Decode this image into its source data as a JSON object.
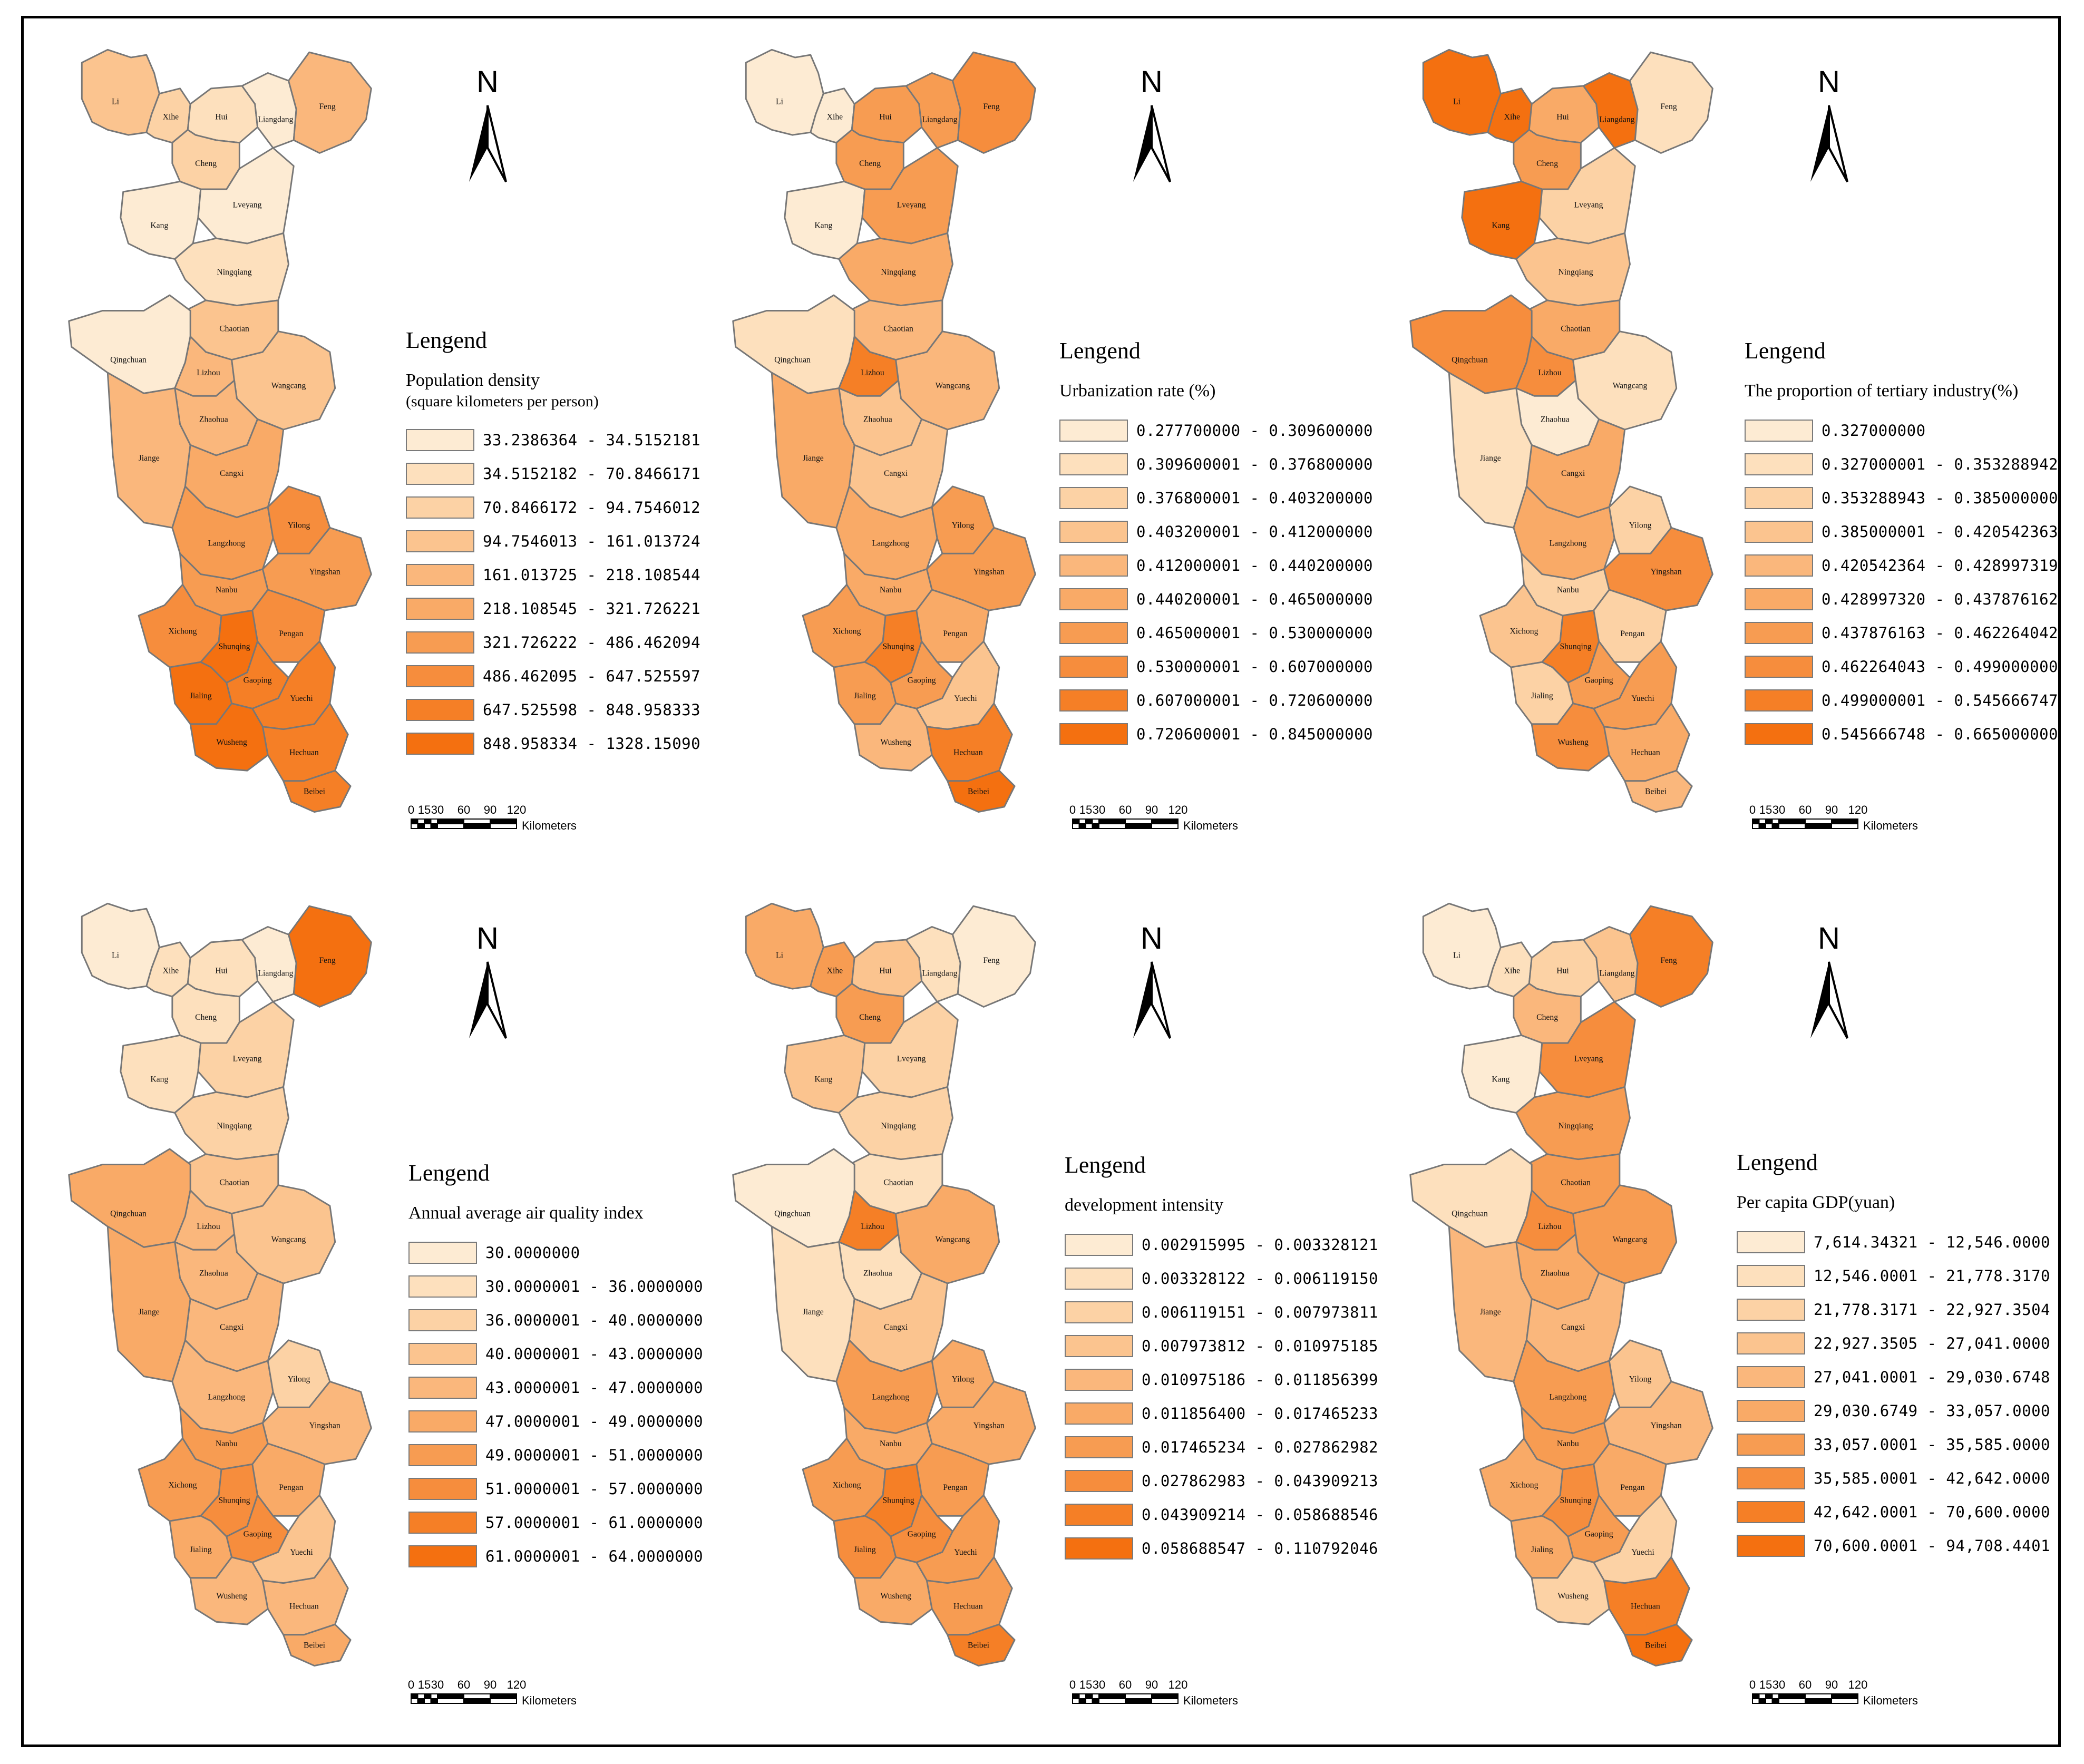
{
  "colors": {
    "ramp": [
      "#fdebd3",
      "#fde0bd",
      "#fcd2a5",
      "#fbc48f",
      "#fab77c",
      "#f9aa67",
      "#f79c52",
      "#f68d3d",
      "#f57f26",
      "#f47010"
    ],
    "outline": "#777777",
    "frame": "#000000"
  },
  "map": {
    "districts": [
      "Li",
      "Xihe",
      "Hui",
      "Liangdang",
      "Feng",
      "Cheng",
      "Kang",
      "Lveyang",
      "Ningqiang",
      "Chaotian",
      "Qingchuan",
      "Lizhou",
      "Wangcang",
      "Zhaohua",
      "Jiange",
      "Cangxi",
      "Langzhong",
      "Yilong",
      "Nanbu",
      "Yingshan",
      "Xichong",
      "Shunqing",
      "Pengan",
      "Gaoping",
      "Jialing",
      "Yuechi",
      "Wusheng",
      "Hechuan",
      "Beibei"
    ]
  },
  "north_label": "N",
  "scale_bar": {
    "ticks": [
      "0",
      "15",
      "30",
      "60",
      "90",
      "120"
    ],
    "unit": "Kilometers"
  },
  "panels": [
    {
      "heading": "Lengend",
      "title": "Population density",
      "subtitle": "(square kilometers per person)",
      "classes": [
        "33.2386364 - 34.5152181",
        "34.5152182 - 70.8466171",
        "70.8466172 - 94.7546012",
        "94.7546013 - 161.013724",
        "161.013725 - 218.108544",
        "218.108545 - 321.726221",
        "321.726222 - 486.462094",
        "486.462095 - 647.525597",
        "647.525598 - 848.958333",
        "848.958334 - 1328.15090"
      ],
      "levels": [
        3,
        2,
        1,
        0,
        4,
        2,
        0,
        0,
        1,
        3,
        0,
        4,
        3,
        4,
        4,
        5,
        6,
        7,
        6,
        6,
        7,
        9,
        7,
        8,
        9,
        8,
        9,
        8,
        8
      ]
    },
    {
      "heading": "Lengend",
      "title": "Urbanization rate (%)",
      "subtitle": "",
      "classes": [
        "0.277700000 - 0.309600000",
        "0.309600001 - 0.376800000",
        "0.376800001 - 0.403200000",
        "0.403200001 - 0.412000000",
        "0.412000001 - 0.440200000",
        "0.440200001 - 0.465000000",
        "0.465000001 - 0.530000000",
        "0.530000001 - 0.607000000",
        "0.607000001 - 0.720600000",
        "0.720600001 - 0.845000000"
      ],
      "levels": [
        0,
        0,
        6,
        6,
        7,
        6,
        0,
        6,
        5,
        4,
        1,
        8,
        4,
        3,
        5,
        3,
        5,
        6,
        5,
        6,
        6,
        8,
        5,
        6,
        6,
        3,
        4,
        8,
        9
      ]
    },
    {
      "heading": "Lengend",
      "title": "The proportion of tertiary industry(%)",
      "subtitle": "",
      "classes": [
        "0.327000000",
        "0.327000001 - 0.353288942",
        "0.353288943 - 0.385000000",
        "0.385000001 - 0.420542363",
        "0.420542364 - 0.428997319",
        "0.428997320 - 0.437876162",
        "0.437876163 - 0.462264042",
        "0.462264043 - 0.499000000",
        "0.499000001 - 0.545666747",
        "0.545666748 - 0.665000000"
      ],
      "levels": [
        9,
        9,
        5,
        9,
        1,
        6,
        9,
        2,
        3,
        5,
        7,
        7,
        1,
        0,
        1,
        5,
        5,
        2,
        2,
        7,
        3,
        8,
        2,
        6,
        2,
        6,
        7,
        5,
        4
      ]
    },
    {
      "heading": "Lengend",
      "title": "Annual average air quality index",
      "subtitle": "",
      "classes": [
        "30.0000000",
        "30.0000001 - 36.0000000",
        "36.0000001 - 40.0000000",
        "40.0000001 - 43.0000000",
        "43.0000001 - 47.0000000",
        "47.0000001 - 49.0000000",
        "49.0000001 - 51.0000000",
        "51.0000001 - 57.0000000",
        "57.0000001 - 61.0000000",
        "61.0000001 - 64.0000000"
      ],
      "levels": [
        0,
        1,
        1,
        0,
        9,
        1,
        1,
        2,
        2,
        3,
        5,
        4,
        3,
        4,
        5,
        4,
        4,
        2,
        6,
        4,
        6,
        7,
        5,
        7,
        5,
        3,
        4,
        4,
        5
      ]
    },
    {
      "heading": "Lengend",
      "title": "development intensity",
      "subtitle": "",
      "classes": [
        "0.002915995 - 0.003328121",
        "0.003328122 - 0.006119150",
        "0.006119151 - 0.007973811",
        "0.007973812 - 0.010975185",
        "0.010975186 - 0.011856399",
        "0.011856400 - 0.017465233",
        "0.017465234 - 0.027862982",
        "0.027862983 - 0.043909213",
        "0.043909214 - 0.058688546",
        "0.058688547 - 0.110792046"
      ],
      "levels": [
        5,
        6,
        3,
        1,
        0,
        6,
        3,
        2,
        2,
        1,
        0,
        8,
        5,
        1,
        1,
        3,
        6,
        5,
        5,
        5,
        6,
        8,
        6,
        7,
        7,
        6,
        5,
        6,
        8
      ]
    },
    {
      "heading": "Lengend",
      "title": "Per capita GDP(yuan)",
      "subtitle": "",
      "classes": [
        "7,614.34321 - 12,546.0000",
        "12,546.0001 - 21,778.3170",
        "21,778.3171 - 22,927.3504",
        "22,927.3505 - 27,041.0000",
        "27,041.0001 - 29,030.6748",
        "29,030.6749 - 33,057.0000",
        "33,057.0001 - 35,585.0000",
        "35,585.0001 - 42,642.0000",
        "42,642.0001 - 70,600.0000",
        "70,600.0001 - 94,708.4401"
      ],
      "levels": [
        0,
        1,
        2,
        3,
        8,
        4,
        0,
        7,
        6,
        6,
        1,
        7,
        6,
        5,
        4,
        4,
        6,
        3,
        6,
        4,
        5,
        7,
        5,
        6,
        5,
        2,
        2,
        8,
        9
      ]
    }
  ]
}
